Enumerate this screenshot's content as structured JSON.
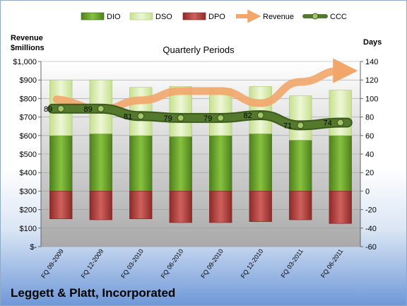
{
  "chart_data": {
    "type": "bar",
    "title": "Quarterly Periods",
    "company": "Leggett & Platt, Incorporated",
    "left_axis_label": [
      "Revenue",
      "$millions"
    ],
    "right_axis_label": "Days",
    "categories": [
      "FQ 09-2009",
      "FQ 12-2009",
      "FQ 03-2010",
      "FQ 06-2010",
      "FQ 09-2010",
      "FQ 12-2010",
      "FQ 03-2011",
      "FQ 06-2011"
    ],
    "left_ticks": [
      "$-",
      "$100",
      "$200",
      "$300",
      "$400",
      "$500",
      "$600",
      "$700",
      "$800",
      "$900",
      "$1,000"
    ],
    "right_ticks": [
      "-60",
      "-40",
      "-20",
      "0",
      "20",
      "40",
      "60",
      "80",
      "100",
      "120",
      "140"
    ],
    "left_range": [
      0,
      1000
    ],
    "right_range": [
      -60,
      140
    ],
    "series": [
      {
        "name": "DIO",
        "color": "#6aa02e",
        "values": [
          60,
          62,
          60,
          59,
          60,
          62,
          55,
          60
        ]
      },
      {
        "name": "DSO",
        "color": "#d9ecb0",
        "values": [
          60,
          58,
          52,
          54,
          51,
          51,
          48,
          49
        ]
      },
      {
        "name": "DPO",
        "color": "#c0504d",
        "values": [
          -30,
          -31,
          -30,
          -34,
          -34,
          -33,
          -31,
          -35
        ]
      },
      {
        "name": "Revenue",
        "color": "#f2a66a",
        "values": [
          780,
          740,
          790,
          840,
          840,
          775,
          890,
          950
        ]
      },
      {
        "name": "CCC",
        "color": "#4e6b2a",
        "values": [
          89,
          89,
          81,
          79,
          79,
          82,
          71,
          74
        ]
      }
    ],
    "ccc_labels": [
      "89",
      "89",
      "81",
      "79",
      "79",
      "82",
      "71",
      "74"
    ],
    "legend_position": "top"
  }
}
